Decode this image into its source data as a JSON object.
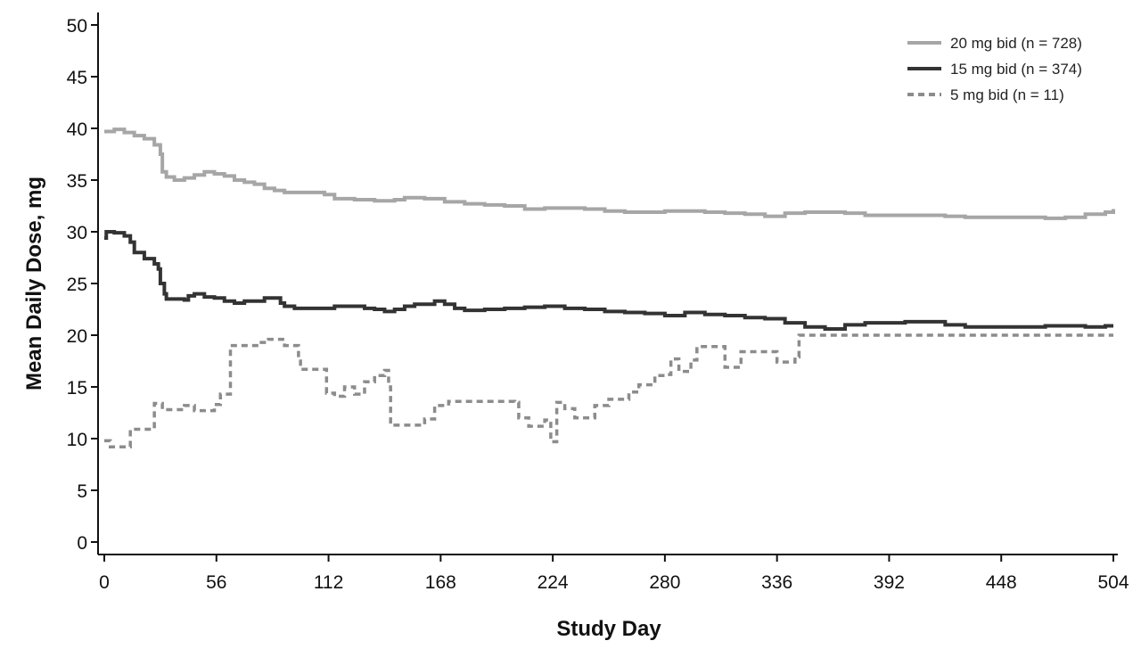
{
  "chart_data": {
    "type": "line",
    "title": "",
    "xlabel": "Study Day",
    "ylabel": "Mean Daily Dose, mg",
    "xlim": [
      0,
      504
    ],
    "ylim": [
      0,
      50
    ],
    "xticks": [
      0,
      56,
      112,
      168,
      224,
      280,
      336,
      392,
      448,
      504
    ],
    "yticks": [
      0,
      5,
      10,
      15,
      20,
      25,
      30,
      35,
      40,
      45,
      50
    ],
    "grid": false,
    "legend_position": "top-right",
    "series": [
      {
        "name": "20 mg bid (n = 728)",
        "color": "#a6a6a6",
        "style": "solid",
        "step": true,
        "points": [
          [
            0,
            39.7
          ],
          [
            5,
            39.9
          ],
          [
            10,
            39.6
          ],
          [
            15,
            39.3
          ],
          [
            20,
            39.0
          ],
          [
            25,
            38.4
          ],
          [
            28,
            37.5
          ],
          [
            29,
            35.8
          ],
          [
            31,
            35.3
          ],
          [
            35,
            35.0
          ],
          [
            40,
            35.2
          ],
          [
            45,
            35.5
          ],
          [
            50,
            35.8
          ],
          [
            55,
            35.6
          ],
          [
            60,
            35.4
          ],
          [
            65,
            35.0
          ],
          [
            70,
            34.8
          ],
          [
            75,
            34.6
          ],
          [
            80,
            34.2
          ],
          [
            85,
            34.0
          ],
          [
            90,
            33.8
          ],
          [
            100,
            33.8
          ],
          [
            110,
            33.6
          ],
          [
            115,
            33.2
          ],
          [
            125,
            33.1
          ],
          [
            135,
            33.0
          ],
          [
            145,
            33.1
          ],
          [
            150,
            33.3
          ],
          [
            160,
            33.2
          ],
          [
            170,
            32.9
          ],
          [
            180,
            32.7
          ],
          [
            190,
            32.6
          ],
          [
            200,
            32.5
          ],
          [
            210,
            32.2
          ],
          [
            220,
            32.3
          ],
          [
            230,
            32.3
          ],
          [
            240,
            32.2
          ],
          [
            250,
            32.0
          ],
          [
            260,
            31.9
          ],
          [
            270,
            31.9
          ],
          [
            280,
            32.0
          ],
          [
            290,
            32.0
          ],
          [
            300,
            31.9
          ],
          [
            310,
            31.8
          ],
          [
            320,
            31.7
          ],
          [
            330,
            31.5
          ],
          [
            340,
            31.8
          ],
          [
            350,
            31.9
          ],
          [
            360,
            31.9
          ],
          [
            370,
            31.8
          ],
          [
            380,
            31.6
          ],
          [
            390,
            31.6
          ],
          [
            400,
            31.6
          ],
          [
            410,
            31.6
          ],
          [
            420,
            31.5
          ],
          [
            430,
            31.4
          ],
          [
            440,
            31.4
          ],
          [
            450,
            31.4
          ],
          [
            460,
            31.4
          ],
          [
            470,
            31.3
          ],
          [
            480,
            31.4
          ],
          [
            490,
            31.7
          ],
          [
            500,
            31.9
          ],
          [
            504,
            32.2
          ]
        ]
      },
      {
        "name": "15 mg bid (n = 374)",
        "color": "#333333",
        "style": "solid",
        "step": true,
        "points": [
          [
            0,
            29.4
          ],
          [
            1,
            30.0
          ],
          [
            5,
            29.9
          ],
          [
            10,
            29.6
          ],
          [
            13,
            29.0
          ],
          [
            15,
            28.0
          ],
          [
            20,
            27.4
          ],
          [
            25,
            26.9
          ],
          [
            27,
            26.4
          ],
          [
            28,
            25.0
          ],
          [
            30,
            24.0
          ],
          [
            31,
            23.5
          ],
          [
            40,
            23.4
          ],
          [
            42,
            23.8
          ],
          [
            45,
            24.0
          ],
          [
            50,
            23.7
          ],
          [
            55,
            23.6
          ],
          [
            60,
            23.3
          ],
          [
            65,
            23.1
          ],
          [
            70,
            23.3
          ],
          [
            75,
            23.3
          ],
          [
            80,
            23.6
          ],
          [
            85,
            23.6
          ],
          [
            88,
            23.1
          ],
          [
            90,
            22.8
          ],
          [
            95,
            22.6
          ],
          [
            110,
            22.6
          ],
          [
            115,
            22.8
          ],
          [
            130,
            22.6
          ],
          [
            135,
            22.5
          ],
          [
            140,
            22.3
          ],
          [
            145,
            22.5
          ],
          [
            150,
            22.8
          ],
          [
            155,
            23.0
          ],
          [
            160,
            23.0
          ],
          [
            165,
            23.3
          ],
          [
            170,
            23.0
          ],
          [
            175,
            22.6
          ],
          [
            180,
            22.4
          ],
          [
            190,
            22.5
          ],
          [
            200,
            22.6
          ],
          [
            210,
            22.7
          ],
          [
            220,
            22.8
          ],
          [
            230,
            22.6
          ],
          [
            240,
            22.5
          ],
          [
            250,
            22.3
          ],
          [
            260,
            22.2
          ],
          [
            270,
            22.1
          ],
          [
            280,
            21.9
          ],
          [
            290,
            22.2
          ],
          [
            300,
            22.0
          ],
          [
            310,
            21.9
          ],
          [
            320,
            21.7
          ],
          [
            330,
            21.6
          ],
          [
            340,
            21.2
          ],
          [
            350,
            20.8
          ],
          [
            360,
            20.6
          ],
          [
            365,
            20.6
          ],
          [
            370,
            21.0
          ],
          [
            380,
            21.2
          ],
          [
            390,
            21.2
          ],
          [
            400,
            21.3
          ],
          [
            410,
            21.3
          ],
          [
            420,
            21.0
          ],
          [
            430,
            20.8
          ],
          [
            440,
            20.8
          ],
          [
            450,
            20.8
          ],
          [
            460,
            20.8
          ],
          [
            470,
            20.9
          ],
          [
            480,
            20.9
          ],
          [
            490,
            20.8
          ],
          [
            500,
            20.9
          ],
          [
            504,
            20.9
          ]
        ]
      },
      {
        "name": "5 mg bid (n = 11)",
        "color": "#8c8c8c",
        "style": "dashed",
        "step": true,
        "points": [
          [
            0,
            9.8
          ],
          [
            3,
            9.2
          ],
          [
            13,
            10.9
          ],
          [
            25,
            13.4
          ],
          [
            29,
            12.8
          ],
          [
            40,
            13.2
          ],
          [
            45,
            12.7
          ],
          [
            55,
            13.3
          ],
          [
            58,
            14.3
          ],
          [
            63,
            19.0
          ],
          [
            77,
            19.3
          ],
          [
            82,
            19.6
          ],
          [
            90,
            19.0
          ],
          [
            97,
            17.5
          ],
          [
            98,
            16.7
          ],
          [
            107,
            16.7
          ],
          [
            111,
            14.4
          ],
          [
            115,
            14.1
          ],
          [
            120,
            15.0
          ],
          [
            125,
            14.3
          ],
          [
            130,
            15.5
          ],
          [
            135,
            16.1
          ],
          [
            140,
            16.6
          ],
          [
            142,
            15.0
          ],
          [
            143,
            11.3
          ],
          [
            160,
            11.9
          ],
          [
            165,
            13.2
          ],
          [
            172,
            13.6
          ],
          [
            180,
            13.6
          ],
          [
            200,
            13.6
          ],
          [
            205,
            13.5
          ],
          [
            207,
            12.0
          ],
          [
            212,
            11.2
          ],
          [
            220,
            11.8
          ],
          [
            223,
            9.7
          ],
          [
            226,
            13.5
          ],
          [
            230,
            12.9
          ],
          [
            235,
            12.0
          ],
          [
            245,
            13.2
          ],
          [
            252,
            13.8
          ],
          [
            262,
            14.5
          ],
          [
            267,
            15.2
          ],
          [
            275,
            16.1
          ],
          [
            280,
            16.2
          ],
          [
            283,
            17.7
          ],
          [
            287,
            16.5
          ],
          [
            293,
            17.6
          ],
          [
            296,
            18.9
          ],
          [
            310,
            16.9
          ],
          [
            318,
            18.4
          ],
          [
            323,
            18.4
          ],
          [
            336,
            17.4
          ],
          [
            345,
            17.9
          ],
          [
            347,
            20.0
          ],
          [
            355,
            20.0
          ],
          [
            504,
            20.0
          ]
        ]
      }
    ]
  }
}
